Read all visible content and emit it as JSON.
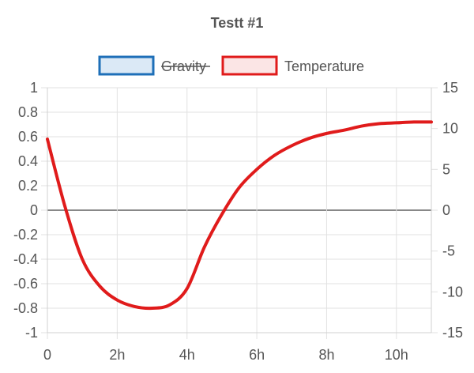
{
  "chart_data": {
    "type": "line",
    "title": "Testt #1",
    "x_tick_labels": [
      "0",
      "2h",
      "4h",
      "6h",
      "8h",
      "10h"
    ],
    "x_ticks": [
      0,
      2,
      4,
      6,
      8,
      10
    ],
    "xlim": [
      0,
      11
    ],
    "y_left": {
      "ticks": [
        1,
        0.8,
        0.6,
        0.4,
        0.2,
        0,
        -0.2,
        -0.4,
        -0.6,
        -0.8,
        -1
      ],
      "tick_labels": [
        "1",
        "0.8",
        "0.6",
        "0.4",
        "0.2",
        "0",
        "-0.2",
        "-0.4",
        "-0.6",
        "-0.8",
        "-1"
      ],
      "ylim": [
        -1,
        1
      ]
    },
    "y_right": {
      "ticks": [
        15,
        10,
        5,
        0,
        -5,
        -10,
        -15
      ],
      "tick_labels": [
        "15",
        "10",
        "5",
        "0",
        "-5",
        "-10",
        "-15"
      ],
      "ylim": [
        -15,
        15
      ]
    },
    "grid": true,
    "legend_position": "top",
    "series": [
      {
        "name": "Gravity",
        "hidden": true,
        "axis": "left",
        "border_color": "#1e6fb8",
        "fill_color": "#dbe9f6",
        "values": []
      },
      {
        "name": "Temperature",
        "hidden": false,
        "axis": "right",
        "border_color": "#e01b1b",
        "fill_color": "#fbe5e5",
        "x": [
          0,
          0.5,
          1,
          1.5,
          2,
          2.5,
          3,
          3.5,
          4,
          4.5,
          5,
          5.5,
          6,
          6.5,
          7,
          7.5,
          8,
          8.5,
          9,
          9.5,
          10,
          10.5,
          11
        ],
        "values": [
          8.7,
          0.5,
          -6.0,
          -9.3,
          -11.0,
          -11.8,
          -12.0,
          -11.6,
          -9.6,
          -4.5,
          -0.5,
          2.8,
          5.0,
          6.7,
          7.9,
          8.8,
          9.4,
          9.8,
          10.3,
          10.6,
          10.7,
          10.8,
          10.8
        ]
      }
    ]
  }
}
